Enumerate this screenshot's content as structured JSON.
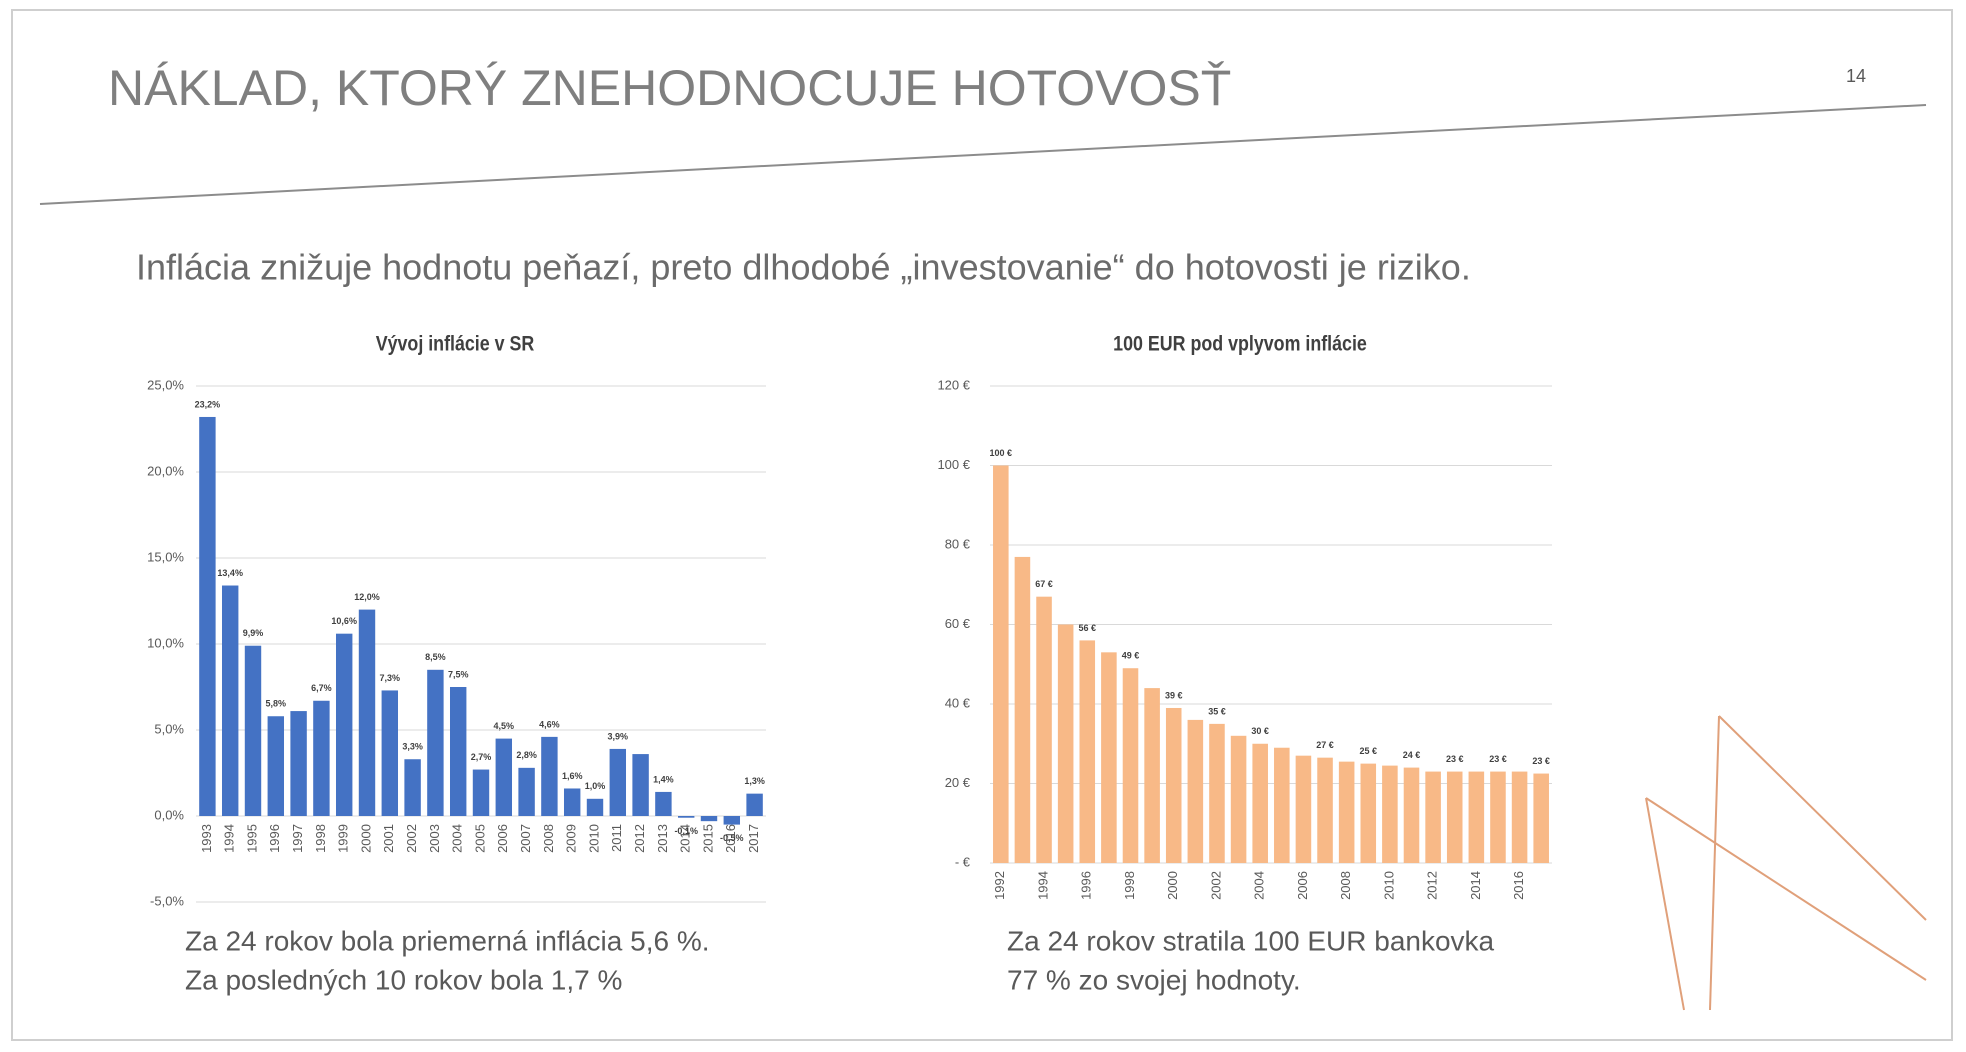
{
  "slide": {
    "title": "NÁKLAD, KTORÝ ZNEHODNOCUJE HOTOVOSŤ",
    "page_number": "14",
    "subtitle": "Inflácia znižuje hodnotu peňazí, preto dlhodobé „investovanie“ do hotovosti je riziko."
  },
  "chart_data": [
    {
      "type": "bar",
      "title": "Vývoj inflácie v SR",
      "color": "#4472c4",
      "grid": true,
      "categories": [
        "1993",
        "1994",
        "1995",
        "1996",
        "1997",
        "1998",
        "1999",
        "2000",
        "2001",
        "2002",
        "2003",
        "2004",
        "2005",
        "2006",
        "2007",
        "2008",
        "2009",
        "2010",
        "2011",
        "2012",
        "2013",
        "2014",
        "2015",
        "2016",
        "2017"
      ],
      "values": [
        23.2,
        13.4,
        9.9,
        5.8,
        6.1,
        6.7,
        10.6,
        12.0,
        7.3,
        3.3,
        8.5,
        7.5,
        2.7,
        4.5,
        2.8,
        4.6,
        1.6,
        1.0,
        3.9,
        3.6,
        1.4,
        -0.1,
        -0.3,
        -0.5,
        1.3
      ],
      "value_labels": [
        "23,2%",
        "13,4%",
        "9,9%",
        "5,8%",
        null,
        "6,7%",
        "10,6%",
        "12,0%",
        "7,3%",
        "3,3%",
        "8,5%",
        "7,5%",
        "2,7%",
        "4,5%",
        "2,8%",
        "4,6%",
        "1,6%",
        "1,0%",
        "3,9%",
        null,
        "1,4%",
        "-0,1%",
        null,
        "-0,5%",
        "1,3%"
      ],
      "ylim": [
        -5,
        25
      ],
      "yticks": [
        {
          "value": -5,
          "label": "-5,0%"
        },
        {
          "value": 0,
          "label": "0,0%"
        },
        {
          "value": 5,
          "label": "5,0%"
        },
        {
          "value": 10,
          "label": "10,0%"
        },
        {
          "value": 15,
          "label": "15,0%"
        },
        {
          "value": 20,
          "label": "20,0%"
        },
        {
          "value": 25,
          "label": "25,0%"
        }
      ],
      "caption": [
        "Za 24 rokov bola priemerná inflácia 5,6 %.",
        "Za posledných 10 rokov bola 1,7 %"
      ]
    },
    {
      "type": "bar",
      "title": "100 EUR pod vplyvom inflácie",
      "color": "#f8b987",
      "grid": true,
      "categories": [
        "1992",
        null,
        "1994",
        null,
        "1996",
        null,
        "1998",
        null,
        "2000",
        null,
        "2002",
        null,
        "2004",
        null,
        "2006",
        null,
        "2008",
        null,
        "2010",
        null,
        "2012",
        null,
        "2014",
        null,
        "2016",
        null
      ],
      "values": [
        100,
        77,
        67,
        60,
        56,
        53,
        49,
        44,
        39,
        36,
        35,
        32,
        30,
        29,
        27,
        26.5,
        25.5,
        25,
        24.5,
        24,
        23,
        23,
        23,
        23,
        23,
        22.5
      ],
      "value_labels": [
        "100 €",
        null,
        "67 €",
        null,
        "56 €",
        null,
        "49 €",
        null,
        "39 €",
        null,
        "35 €",
        null,
        "30 €",
        null,
        null,
        "27 €",
        null,
        "25 €",
        null,
        "24 €",
        null,
        "23 €",
        null,
        "23 €",
        null,
        "23 €"
      ],
      "ylim": [
        0,
        120
      ],
      "yticks": [
        {
          "value": 0,
          "label": "- €"
        },
        {
          "value": 20,
          "label": "20 €"
        },
        {
          "value": 40,
          "label": "40 €"
        },
        {
          "value": 60,
          "label": "60 €"
        },
        {
          "value": 80,
          "label": "80 €"
        },
        {
          "value": 100,
          "label": "100 €"
        },
        {
          "value": 120,
          "label": "120 €"
        }
      ],
      "caption": [
        "Za 24 rokov stratila 100 EUR bankovka",
        "77 % zo svojej hodnoty."
      ]
    }
  ]
}
